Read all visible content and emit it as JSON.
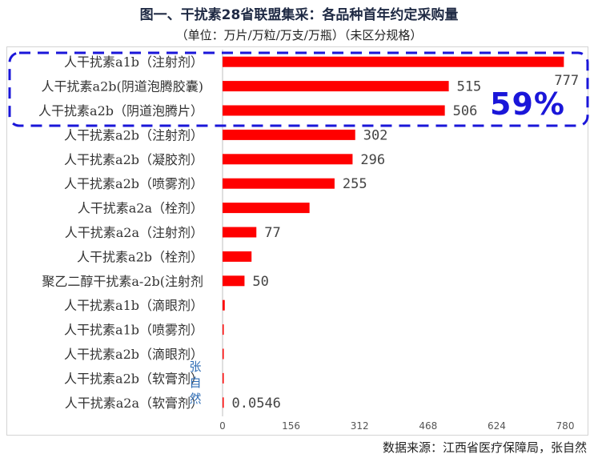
{
  "chart_data": {
    "type": "bar",
    "orientation": "horizontal",
    "title": "图一、干扰素28省联盟集采：各品种首年约定采购量",
    "subtitle": "（单位：万片/万粒/万支/万瓶）（未区分规格）",
    "categories": [
      "人干扰素a1b（注射剂）",
      "人干扰素a2b(阴道泡腾胶囊)",
      "人干扰素a2b（阴道泡腾片）",
      "人干扰素a2b（注射剂）",
      "人干扰素a2b（凝胶剂）",
      "人干扰素a2b（喷雾剂）",
      "人干扰素a2a（栓剂）",
      "人干扰素a2a（注射剂）",
      "人干扰素a2b（栓剂）",
      "聚乙二醇干扰素a-2b(注射剂",
      "人干扰素a1b（滴眼剂）",
      "人干扰素a1b（喷雾剂）",
      "人干扰素a2b（滴眼剂）",
      "人干扰素a2b（软膏剂）",
      "人干扰素a2a（软膏剂）"
    ],
    "values": [
      777,
      515,
      506,
      302,
      296,
      255,
      198,
      77,
      66,
      50,
      5,
      2,
      2,
      1,
      0.0546
    ],
    "data_labels": [
      "777",
      "515",
      "506",
      "302",
      "296",
      "255",
      "",
      "77",
      "",
      "50",
      "",
      "",
      "",
      "",
      "0.0546"
    ],
    "x_ticks": [
      "0",
      "156",
      "312",
      "468",
      "624",
      "780"
    ],
    "xlim": [
      0,
      780
    ],
    "bar_color": "#ff0000",
    "grid": false,
    "legend": "none",
    "highlight": {
      "label": "59%",
      "color": "#1a16d9",
      "categories_covered": [
        "人干扰素a1b（注射剂）",
        "人干扰素a2b(阴道泡腾胶囊)",
        "人干扰素a2b（阴道泡腾片）"
      ]
    }
  },
  "source": "数据来源：江西省医疗保障局，张自然",
  "watermark": [
    "张",
    "自",
    "然"
  ]
}
